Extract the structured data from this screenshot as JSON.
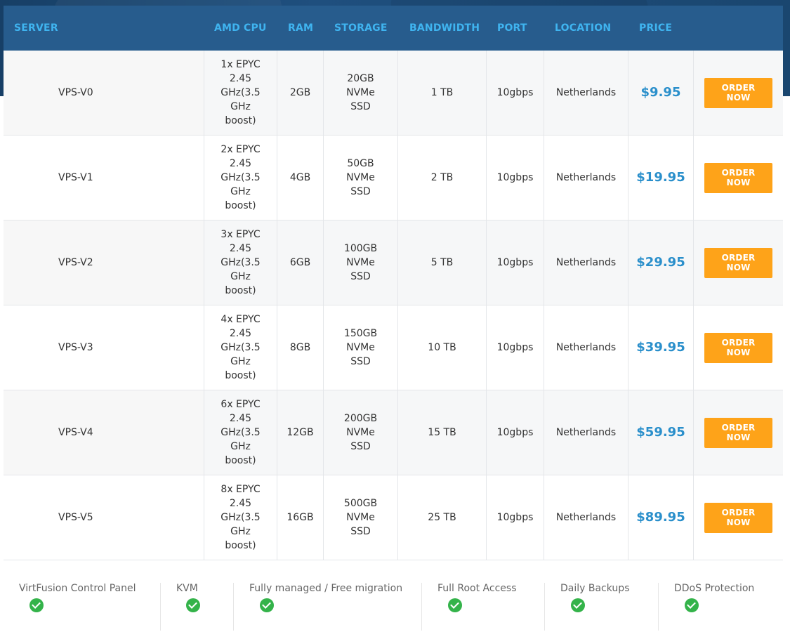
{
  "header": {
    "server": "SERVER",
    "cpu": "AMD CPU",
    "ram": "RAM",
    "storage": "STORAGE",
    "bandwidth": "BANDWIDTH",
    "port": "PORT",
    "location": "LOCATION",
    "price": "PRICE"
  },
  "plans": [
    {
      "server": "VPS-V0",
      "cpu": "1x EPYC 2.45 GHz(3.5 GHz boost)",
      "ram": "2GB",
      "storage": "20GB NVMe SSD",
      "bandwidth": "1 TB",
      "port": "10gbps",
      "location": "Netherlands",
      "price": "$9.95",
      "button": "ORDER NOW"
    },
    {
      "server": "VPS-V1",
      "cpu": "2x EPYC 2.45 GHz(3.5 GHz boost)",
      "ram": "4GB",
      "storage": "50GB NVMe SSD",
      "bandwidth": "2 TB",
      "port": "10gbps",
      "location": "Netherlands",
      "price": "$19.95",
      "button": "ORDER NOW"
    },
    {
      "server": "VPS-V2",
      "cpu": "3x EPYC 2.45 GHz(3.5 GHz boost)",
      "ram": "6GB",
      "storage": "100GB NVMe SSD",
      "bandwidth": "5 TB",
      "port": "10gbps",
      "location": "Netherlands",
      "price": "$29.95",
      "button": "ORDER NOW"
    },
    {
      "server": "VPS-V3",
      "cpu": "4x EPYC 2.45 GHz(3.5 GHz boost)",
      "ram": "8GB",
      "storage": "150GB NVMe SSD",
      "bandwidth": "10 TB",
      "port": "10gbps",
      "location": "Netherlands",
      "price": "$39.95",
      "button": "ORDER NOW"
    },
    {
      "server": "VPS-V4",
      "cpu": "6x EPYC 2.45 GHz(3.5 GHz boost)",
      "ram": "12GB",
      "storage": "200GB NVMe SSD",
      "bandwidth": "15 TB",
      "port": "10gbps",
      "location": "Netherlands",
      "price": "$59.95",
      "button": "ORDER NOW"
    },
    {
      "server": "VPS-V5",
      "cpu": "8x EPYC 2.45 GHz(3.5 GHz boost)",
      "ram": "16GB",
      "storage": "500GB NVMe SSD",
      "bandwidth": "25 TB",
      "port": "10gbps",
      "location": "Netherlands",
      "price": "$89.95",
      "button": "ORDER NOW"
    }
  ],
  "features": [
    {
      "label": "VirtFusion Control Panel",
      "icon": "check-circle-icon"
    },
    {
      "label": "KVM",
      "icon": "check-circle-icon"
    },
    {
      "label": "Fully managed / Free migration",
      "icon": "check-circle-icon"
    },
    {
      "label": "Full Root Access",
      "icon": "check-circle-icon"
    },
    {
      "label": "Daily Backups",
      "icon": "check-circle-icon"
    },
    {
      "label": "DDoS Protection",
      "icon": "check-circle-icon"
    }
  ],
  "colors": {
    "header_bg": "#275c8d",
    "header_text": "#3fb4f0",
    "price_text": "#2a8fcb",
    "button_bg": "#fea319",
    "check_green": "#34b34a"
  }
}
